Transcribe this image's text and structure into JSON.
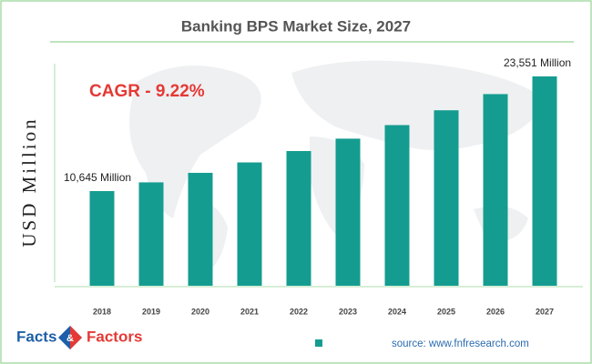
{
  "chart_data": {
    "type": "bar",
    "title": "Banking BPS Market Size, 2027",
    "y_axis_label": "USD Million",
    "annotation": "CAGR - 9.22%",
    "source": "source: www.fnfresearch.com",
    "logo": {
      "left": "Facts",
      "middle": "&",
      "right": "Factors"
    },
    "categories": [
      "2018",
      "2019",
      "2020",
      "2021",
      "2022",
      "2023",
      "2024",
      "2025",
      "2026",
      "2027"
    ],
    "values": [
      10645,
      11627,
      12699,
      13870,
      15149,
      16546,
      18071,
      19737,
      21557,
      23551
    ],
    "value_labels": [
      "10,645 Million",
      null,
      null,
      null,
      null,
      null,
      null,
      null,
      null,
      "23,551 Million"
    ],
    "color": "#149c90",
    "ylim": [
      0,
      26000
    ]
  }
}
